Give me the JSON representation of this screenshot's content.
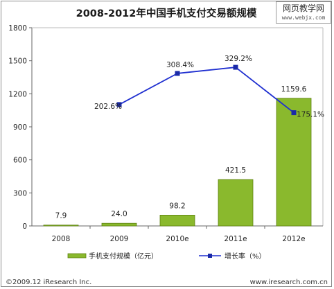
{
  "chart_data": {
    "type": "bar",
    "title": "2008-2012年中国手机支付交易额规模",
    "categories": [
      "2008",
      "2009",
      "2010e",
      "2011e",
      "2012e"
    ],
    "series": [
      {
        "name": "手机支付规模（亿元）",
        "type": "bar",
        "values": [
          7.9,
          24.0,
          98.2,
          421.5,
          1159.6
        ],
        "labels": [
          "7.9",
          "24.0",
          "98.2",
          "421.5",
          "1159.6"
        ]
      },
      {
        "name": "增长率（%）",
        "type": "line",
        "values": [
          null,
          202.6,
          308.4,
          329.2,
          175.1
        ],
        "labels": [
          "",
          "202.6%",
          "308.4%",
          "329.2%",
          "175.1%"
        ]
      }
    ],
    "ylim": [
      0,
      1800
    ],
    "yticks": [
      "0",
      "300",
      "600",
      "900",
      "1200",
      "1500",
      "1800"
    ],
    "legend_position": "bottom",
    "grid": false,
    "colors": {
      "bar": "#8ab92d",
      "bar_stroke": "#5c7f10",
      "line": "#1f2fd0",
      "marker": "#1a2aa8"
    }
  },
  "footer": {
    "left": "©2009.12 iResearch Inc.",
    "right": "www.iresearch.com.cn"
  },
  "watermark": {
    "line1": "网页教学网",
    "line2": "www.webjx.com"
  }
}
